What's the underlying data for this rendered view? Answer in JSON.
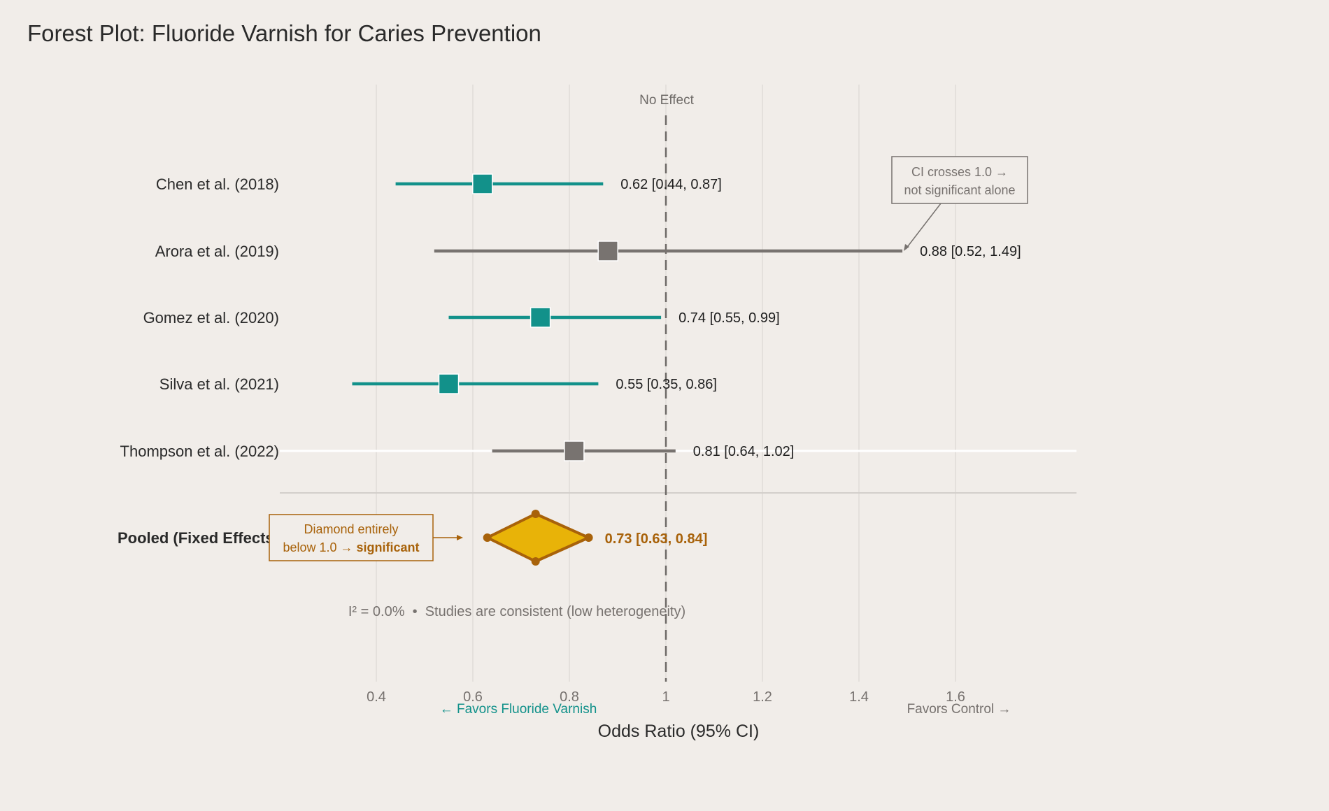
{
  "chart_data": {
    "type": "forest",
    "title": "Forest Plot: Fluoride Varnish for Caries Prevention",
    "xlabel": "Odds Ratio (95% CI)",
    "xlim": [
      0.2,
      1.85
    ],
    "xticks": [
      0.4,
      0.6,
      0.8,
      1,
      1.2,
      1.4,
      1.6
    ],
    "xtick_labels": [
      "0.4",
      "0.6",
      "0.8",
      "1",
      "1.2",
      "1.4",
      "1.6"
    ],
    "grid": true,
    "reference_line": {
      "value": 1,
      "label": "No Effect"
    },
    "studies": [
      {
        "name": "Chen et al. (2018)",
        "or": 0.62,
        "lo": 0.44,
        "hi": 0.87,
        "label": "0.62 [0.44, 0.87]",
        "significant": true
      },
      {
        "name": "Arora et al. (2019)",
        "or": 0.88,
        "lo": 0.52,
        "hi": 1.49,
        "label": "0.88 [0.52, 1.49]",
        "significant": false
      },
      {
        "name": "Gomez et al. (2020)",
        "or": 0.74,
        "lo": 0.55,
        "hi": 0.99,
        "label": "0.74 [0.55, 0.99]",
        "significant": true
      },
      {
        "name": "Silva et al. (2021)",
        "or": 0.55,
        "lo": 0.35,
        "hi": 0.86,
        "label": "0.55 [0.35, 0.86]",
        "significant": true
      },
      {
        "name": "Thompson et al. (2022)",
        "or": 0.81,
        "lo": 0.64,
        "hi": 1.02,
        "label": "0.81 [0.64, 1.02]",
        "significant": false
      }
    ],
    "pooled": {
      "name": "Pooled (Fixed Effects)",
      "or": 0.73,
      "lo": 0.63,
      "hi": 0.84,
      "label": "0.73 [0.63, 0.84]"
    },
    "heterogeneity": "I² = 0.0%  •  Studies are consistent (low heterogeneity)",
    "favors_left": "← Favors Fluoride Varnish",
    "favors_right": "Favors Control →",
    "annotations": {
      "ci_note_line1": "CI crosses 1.0 →",
      "ci_note_line2": "not significant alone",
      "diamond_note_line1": "Diamond entirely",
      "diamond_note_line2_prefix": "below 1.0 → ",
      "diamond_note_line2_bold": "significant"
    },
    "colors": {
      "significant": "#12918a",
      "not_significant": "#787370",
      "pooled_fill": "#e8b308",
      "pooled_edge": "#a8620a",
      "background": "#f1ede9"
    }
  }
}
